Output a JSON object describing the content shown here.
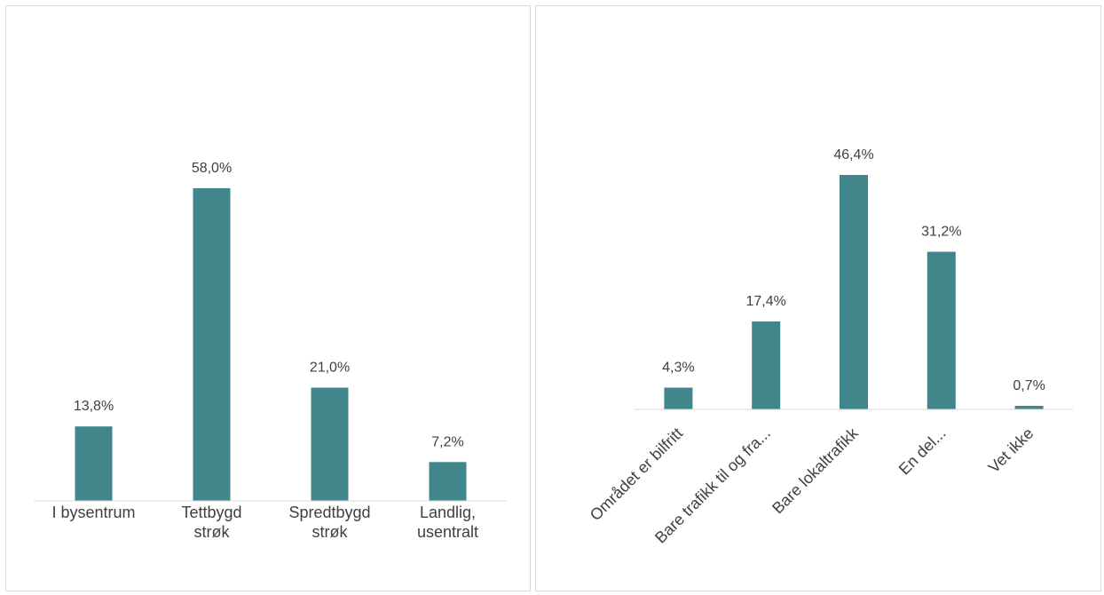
{
  "chart_data": [
    {
      "type": "bar",
      "categories": [
        "I bysentrum",
        "Tettbygd strøk",
        "Spredtbygd strøk",
        "Landlig, usentralt"
      ],
      "category_lines": [
        [
          "I bysentrum"
        ],
        [
          "Tettbygd",
          "strøk"
        ],
        [
          "Spredtbygd",
          "strøk"
        ],
        [
          "Landlig,",
          "usentralt"
        ]
      ],
      "values": [
        13.8,
        58.0,
        21.0,
        7.2
      ],
      "data_labels": [
        "13,8%",
        "58,0%",
        "21,0%",
        "7,2%"
      ],
      "ylim": [
        0,
        65
      ],
      "grid": false,
      "color": "#40868b"
    },
    {
      "type": "bar",
      "categories": [
        "Området er bilfritt",
        "Bare trafikk til og fra...",
        "Bare lokaltrafikk",
        "En del...",
        "Vet ikke"
      ],
      "values": [
        4.3,
        17.4,
        46.4,
        31.2,
        0.7
      ],
      "data_labels": [
        "4,3%",
        "17,4%",
        "46,4%",
        "31,2%",
        "0,7%"
      ],
      "ylim": [
        0,
        52
      ],
      "grid": false,
      "color": "#40868b"
    }
  ]
}
